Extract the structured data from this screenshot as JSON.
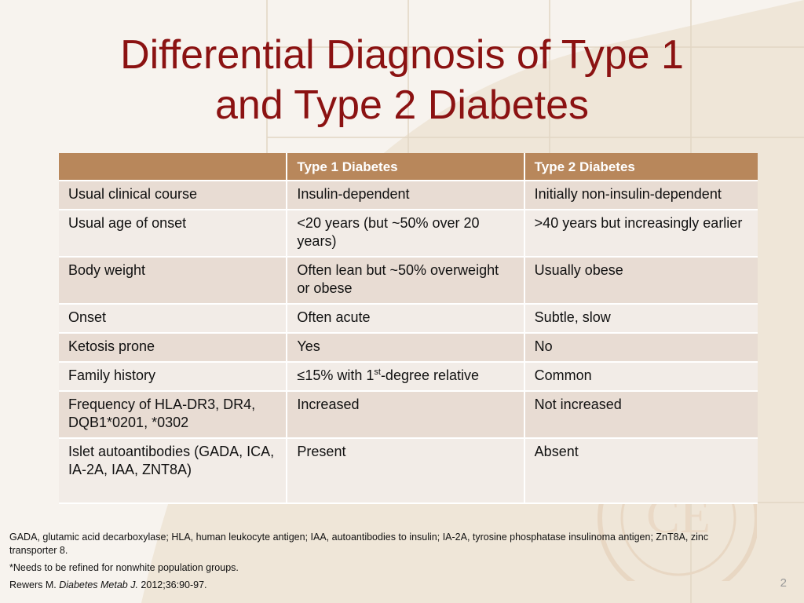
{
  "slide": {
    "title_line1": "Differential Diagnosis of Type 1",
    "title_line2": "and Type 2 Diabetes",
    "page_number": "2"
  },
  "table": {
    "headers": [
      "",
      "Type 1 Diabetes",
      "Type 2 Diabetes"
    ],
    "rows": [
      {
        "feature": "Usual clinical course",
        "type1": "Insulin-dependent",
        "type2": "Initially non-insulin-dependent"
      },
      {
        "feature": "Usual age of onset",
        "type1": "<20 years (but ~50% over 20 years)",
        "type2": ">40 years but increasingly earlier"
      },
      {
        "feature": "Body weight",
        "type1": "Often lean but ~50% overweight or obese",
        "type2": "Usually obese"
      },
      {
        "feature": "Onset",
        "type1": "Often acute",
        "type2": "Subtle, slow"
      },
      {
        "feature": "Ketosis prone",
        "type1": "Yes",
        "type2": "No"
      },
      {
        "feature": "Family history",
        "type1_symbol": "≤",
        "type1_pre": "15% with 1",
        "type1_sup": "st",
        "type1_post": "-degree relative",
        "type2": "Common"
      },
      {
        "feature": "Frequency of HLA-DR3, DR4, DQB1*0201, *0302",
        "type1": "Increased",
        "type2": "Not increased"
      },
      {
        "feature": "Islet autoantibodies (GADA, ICA, IA-2A, IAA, ZNT8A)",
        "type1": "Present",
        "type2": "Absent"
      }
    ]
  },
  "footnotes": {
    "abbreviations": "GADA, glutamic acid decarboxylase; HLA, human leukocyte antigen; IAA, autoantibodies to insulin; IA-2A, tyrosine phosphatase insulinoma antigen; ZnT8A, zinc transporter 8.",
    "note": "*Needs to be refined for nonwhite population groups.",
    "citation_author": "Rewers M. ",
    "citation_journal": "Diabetes Metab J.",
    "citation_rest": " 2012;36:90-97."
  },
  "watermark": {
    "letters": "CE",
    "ring_text": "AMERICAN ASSOCIATION OF CLINICAL ENDOCRINOLOGISTS"
  },
  "colors": {
    "title": "#8b1212",
    "header_bg": "#b8875b",
    "row_dark": "#e8dcd3",
    "row_light": "#f2ece7"
  }
}
